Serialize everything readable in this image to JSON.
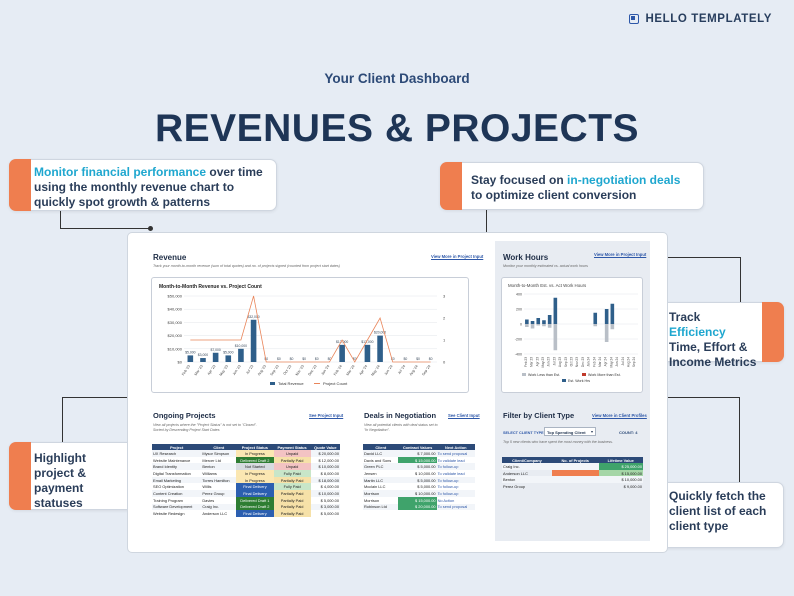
{
  "brand": "HELLO TEMPLATELY",
  "subtitle": "Your Client Dashboard",
  "title": "REVENUES & PROJECTS",
  "callouts": {
    "c1_hl": "Monitor financial performance",
    "c1_rest": " over time using the monthly revenue chart to quickly spot growth & patterns",
    "c2_pre": "Stay focused on ",
    "c2_hl": "in-negotiation deals",
    "c2_rest": " to optimize client conversion",
    "c3_pre": "Track ",
    "c3_hl": "Efficiency",
    "c3_rest": "Time, Effort & Income Metrics",
    "c4": "Highlight project & payment statuses",
    "c5": "Quickly fetch the client list of each client type"
  },
  "revenue": {
    "title": "Revenue",
    "desc": "Track your month-to-month revenue (sum of total quotes) and no. of projects signed (counted from project start dates)",
    "link": "View More in Project Input"
  },
  "chart_data": [
    {
      "type": "bar",
      "title": "Month-to-Month Revenue vs. Project Count",
      "categories": [
        "Feb '23",
        "Mar '23",
        "Apr '23",
        "May '23",
        "Jun '23",
        "Jul '23",
        "Aug '23",
        "Sep '23",
        "Oct '23",
        "Nov '23",
        "Dec '23",
        "Jan '24",
        "Feb '24",
        "Mar '24",
        "Apr '24",
        "May '24",
        "Jun '24",
        "Jul '24",
        "Aug '24",
        "Sep '24"
      ],
      "series": [
        {
          "name": "Total Revenue",
          "values": [
            5000,
            3000,
            7000,
            5000,
            10000,
            32000,
            0,
            0,
            0,
            0,
            0,
            0,
            13000,
            0,
            13000,
            20000,
            0,
            0,
            0,
            0
          ]
        },
        {
          "name": "Project Count",
          "values": [
            1,
            1,
            1,
            1,
            1,
            3,
            0,
            0,
            0,
            0,
            0,
            0,
            1,
            0,
            1,
            2,
            0,
            0,
            0,
            0
          ]
        }
      ],
      "data_labels": [
        "$5,000",
        "$3,000",
        "$7,000",
        "$5,000",
        "$10,000",
        "$32,000",
        "$0",
        "$0",
        "$0",
        "$0",
        "$0",
        "$0",
        "$13,000",
        "$0",
        "$13,000",
        "$20,000",
        "$0",
        "$0",
        "$0",
        "$0"
      ],
      "y_ticks": [
        "$0",
        "$10,000",
        "$20,000",
        "$30,000",
        "$40,000",
        "$50,000"
      ],
      "y2_ticks": [
        "0",
        "1",
        "2",
        "3"
      ],
      "ylim": [
        0,
        50000
      ],
      "y2lim": [
        0,
        3
      ]
    },
    {
      "type": "bar",
      "title": "Month-to-Month Est. vs. Act Work Hours",
      "categories": [
        "Feb 23",
        "Mar 23",
        "Apr 23",
        "May 23",
        "Jun 23",
        "Jul 23",
        "Aug 23",
        "Sep 23",
        "Oct 23",
        "Nov 23",
        "Dec 23",
        "Jan 24",
        "Feb 24",
        "Mar 24",
        "Apr 24",
        "May 24",
        "Jun 24",
        "Jul 24",
        "Aug 24",
        "Sep 24"
      ],
      "series": [
        {
          "name": "Work Less than Est.",
          "values": [
            -40,
            -60,
            -20,
            -30,
            -50,
            -350,
            0,
            0,
            0,
            0,
            0,
            0,
            -30,
            0,
            -240,
            -70,
            0,
            0,
            0,
            0
          ]
        },
        {
          "name": "Work More than Est.",
          "values": [
            0,
            0,
            0,
            0,
            0,
            0,
            0,
            0,
            0,
            0,
            0,
            0,
            0,
            0,
            0,
            0,
            0,
            0,
            0,
            0
          ]
        },
        {
          "name": "Est. Work Hrs",
          "values": [
            60,
            40,
            80,
            50,
            120,
            350,
            0,
            0,
            0,
            0,
            0,
            0,
            150,
            0,
            200,
            270,
            0,
            0,
            0,
            0
          ]
        }
      ],
      "y_ticks": [
        "-400",
        "-200",
        "0",
        "200",
        "400"
      ],
      "ylim": [
        -400,
        400
      ]
    }
  ],
  "work": {
    "title": "Work Hours",
    "desc": "Monitor your monthly estimated vs. actual work hours",
    "link": "View More in Project Input",
    "legend": [
      "Work Less than Est.",
      "Work More than Est.",
      "Est. Work Hrs"
    ]
  },
  "ongoing": {
    "title": "Ongoing Projects",
    "link": "See Project Input",
    "desc1": "View all projects where the \"Project Status\" is not set to \"Closed\".",
    "desc2": "Sorted by Descending Project Start Dates",
    "headers": [
      "Project",
      "Client",
      "Project Status",
      "Payment Status",
      "Quote Value"
    ],
    "rows": [
      [
        "UX Research",
        "Mysor Simpson",
        "In Progress",
        "Unpaid",
        "$",
        "20,000.00"
      ],
      [
        "Website Maintenance",
        "Mercer Ltd",
        "Delivered Draft 2",
        "Partially Paid",
        "$",
        "12,000.00"
      ],
      [
        "Brand Identity",
        "Benton",
        "Not Started",
        "Unpaid",
        "$",
        "10,000.00"
      ],
      [
        "Digital Transformation",
        "Williams",
        "In Progress",
        "Fully Paid",
        "$",
        "8,000.00"
      ],
      [
        "Email Marketing",
        "Torres Hamilton",
        "In Progress",
        "Partially Paid",
        "$",
        "18,000.00"
      ],
      [
        "SEO Optimization",
        "Willis",
        "Final Delivery",
        "Fully Paid",
        "$",
        "4,000.00"
      ],
      [
        "Content Creation",
        "Perez Group",
        "Final Delivery",
        "Partially Paid",
        "$",
        "10,000.00"
      ],
      [
        "Training Program",
        "Davies",
        "Delivered Draft 1",
        "Partially Paid",
        "$",
        "5,000.00"
      ],
      [
        "Software Development",
        "Craig Inc.",
        "Delivered Draft 2",
        "Partially Paid",
        "$",
        "3,000.00"
      ],
      [
        "Website Redesign",
        "Anderson LLC",
        "Final Delivery",
        "Partially Paid",
        "$",
        "5,000.00"
      ]
    ]
  },
  "deals": {
    "title": "Deals in Negotiation",
    "link": "See Client Input",
    "desc1": "View all potential clients with deal status set to",
    "desc2": "\"In Negotiation\".",
    "headers": [
      "Client",
      "Contract Values",
      "Next Action"
    ],
    "rows": [
      [
        "David LLC",
        "$",
        "7,000.00",
        "To send proposal"
      ],
      [
        "Davis and Sons",
        "$",
        "15,000.00",
        "To validate lead"
      ],
      [
        "Green PLC",
        "$",
        "5,000.00",
        "To follow-up"
      ],
      [
        "Jensen",
        "$",
        "10,000.00",
        "To validate lead"
      ],
      [
        "Martin LLC",
        "$",
        "5,000.00",
        "To follow-up"
      ],
      [
        "Mcclain LLC",
        "$",
        "5,000.00",
        "To follow-up"
      ],
      [
        "Morrison",
        "$",
        "10,000.00",
        "To follow-up"
      ],
      [
        "Morrison",
        "$",
        "15,000.00",
        "No Action"
      ],
      [
        "Robinson Ltd",
        "$",
        "20,000.00",
        "To send proposal"
      ]
    ]
  },
  "filter": {
    "title": "Filter by Client Type",
    "link": "View More in Client Profiles",
    "select_label": "SELECT CLIENT TYPE ▸",
    "select_value": "Top Spending Client",
    "count": "COUNT: 4",
    "desc": "Top 5 new clients who have spent the most money with the business.",
    "headers": [
      "Client/Company",
      "No. of Projects",
      "Lifetime Value"
    ],
    "rows": [
      [
        "Craig Inc.",
        "",
        "$",
        "25,000.00"
      ],
      [
        "Anderson LLC",
        "",
        "$",
        "15,000.00"
      ],
      [
        "Benton",
        "",
        "$",
        "10,000.00"
      ],
      [
        "Perez Group",
        "",
        "$",
        "9,000.00"
      ]
    ]
  },
  "colors": {
    "accent": "#ef7e4f",
    "highlight": "#1fa7cf",
    "navy": "#1e3556",
    "bar": "#2f5f8a",
    "orange_line": "#e9855a"
  }
}
